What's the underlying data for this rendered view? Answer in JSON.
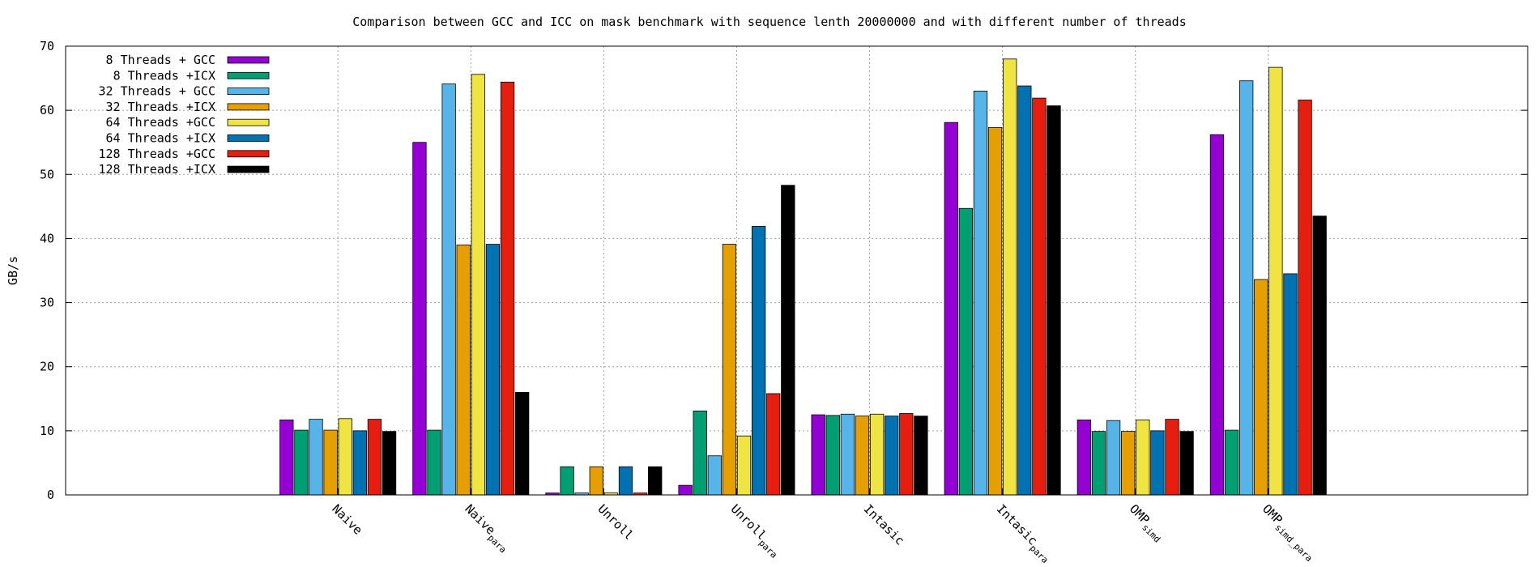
{
  "chart_data": {
    "type": "bar",
    "title": "Comparison between GCC and ICC on mask benchmark with sequence lenth 20000000 and with different number of threads",
    "xlabel": "",
    "ylabel": "GB/s",
    "ylim": [
      0,
      70
    ],
    "yticks": [
      0,
      10,
      20,
      30,
      40,
      50,
      60,
      70
    ],
    "grid": true,
    "legend_position": "top-left",
    "categories": [
      "Naive",
      "Naive_para",
      "Unroll",
      "Unroll_para",
      "Intasic",
      "Intasic_para",
      "OMP_simd",
      "OMP_simd_para"
    ],
    "category_labels": [
      {
        "base": "Naive",
        "sub": ""
      },
      {
        "base": "Naive",
        "sub": "para"
      },
      {
        "base": "Unroll",
        "sub": ""
      },
      {
        "base": "Unroll",
        "sub": "para"
      },
      {
        "base": "Intasic",
        "sub": ""
      },
      {
        "base": "Intasic",
        "sub": "para"
      },
      {
        "base": "OMP",
        "sub": "simd"
      },
      {
        "base": "OMP",
        "sub": "simd_para"
      }
    ],
    "series": [
      {
        "name": "8 Threads + GCC",
        "color": "#9400d3",
        "values": [
          11.7,
          55.0,
          0.3,
          1.5,
          12.5,
          58.1,
          11.7,
          56.2
        ]
      },
      {
        "name": "8 Threads +ICX",
        "color": "#009e73",
        "values": [
          10.1,
          10.1,
          4.4,
          13.1,
          12.4,
          44.7,
          9.9,
          10.1
        ]
      },
      {
        "name": "32 Threads + GCC",
        "color": "#56b4e9",
        "values": [
          11.8,
          64.1,
          0.3,
          6.1,
          12.6,
          63.0,
          11.6,
          64.6
        ]
      },
      {
        "name": "32 Threads +ICX",
        "color": "#e69f00",
        "values": [
          10.1,
          39.0,
          4.4,
          39.1,
          12.3,
          57.3,
          9.9,
          33.6
        ]
      },
      {
        "name": "64 Threads +GCC",
        "color": "#f0e442",
        "values": [
          11.9,
          65.6,
          0.3,
          9.2,
          12.6,
          68.0,
          11.7,
          66.7
        ]
      },
      {
        "name": "64 Threads +ICX",
        "color": "#0072b2",
        "values": [
          10.0,
          39.1,
          4.4,
          41.9,
          12.3,
          63.8,
          10.0,
          34.5
        ]
      },
      {
        "name": "128 Threads +GCC",
        "color": "#e51e10",
        "values": [
          11.8,
          64.4,
          0.3,
          15.8,
          12.7,
          61.9,
          11.8,
          61.6
        ]
      },
      {
        "name": "128 Threads +ICX",
        "color": "#000000",
        "values": [
          9.9,
          16.0,
          4.4,
          48.3,
          12.3,
          60.7,
          9.9,
          43.5
        ]
      }
    ]
  }
}
